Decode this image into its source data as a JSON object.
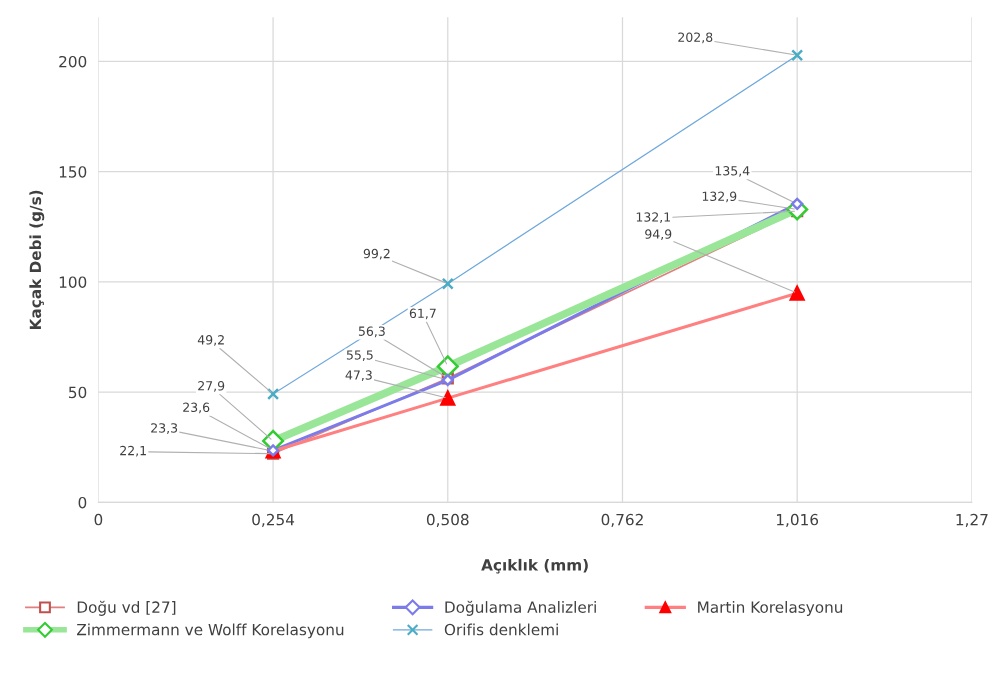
{
  "chart_data": {
    "type": "line",
    "xlabel": "Açıklık (mm)",
    "ylabel": "Kaçak Debi (g/s)",
    "x": [
      0.254,
      0.508,
      1.016
    ],
    "series": [
      {
        "name": "Doğu vd [27]",
        "color": "#c0504d",
        "marker": "square",
        "values": [
          22.1,
          56.3,
          132.1
        ],
        "value_labels": [
          "22,1",
          "56,3",
          "132,1"
        ]
      },
      {
        "name": "Doğulama Analizleri",
        "color": "#7b7bea",
        "marker": "diamond",
        "values": [
          23.6,
          55.5,
          135.4
        ],
        "value_labels": [
          "23,6",
          "55,5",
          "135,4"
        ]
      },
      {
        "name": "Martin Korelasyonu",
        "color": "#ff0000",
        "marker": "triangle",
        "values": [
          23.3,
          47.3,
          94.9
        ],
        "value_labels": [
          "23,3",
          "47,3",
          "94,9"
        ]
      },
      {
        "name": "Zimmermann ve Wolff Korelasyonu",
        "color": "#33cc33",
        "marker": "diamond",
        "values": [
          27.9,
          61.7,
          132.9
        ],
        "value_labels": [
          "27,9",
          "61,7",
          "132,9"
        ]
      },
      {
        "name": "Orifis denklemi",
        "color": "#4bacc6",
        "marker": "cross",
        "values": [
          49.2,
          99.2,
          202.8
        ],
        "value_labels": [
          "49,2",
          "99,2",
          "202,8"
        ]
      }
    ],
    "xlim": [
      0,
      1.27
    ],
    "xticks": [
      0,
      {
        "value": 0.254,
        "label": "0,254"
      },
      {
        "value": 0.508,
        "label": "0,508"
      },
      {
        "value": 0.762,
        "label": "0,762"
      },
      {
        "value": 1.016,
        "label": "1,016"
      },
      {
        "value": 1.27,
        "label": "1,27"
      }
    ],
    "ylim": [
      0,
      220
    ],
    "yticks": [
      0,
      50,
      100,
      150,
      200
    ],
    "grid": true,
    "legend": "bottom"
  }
}
